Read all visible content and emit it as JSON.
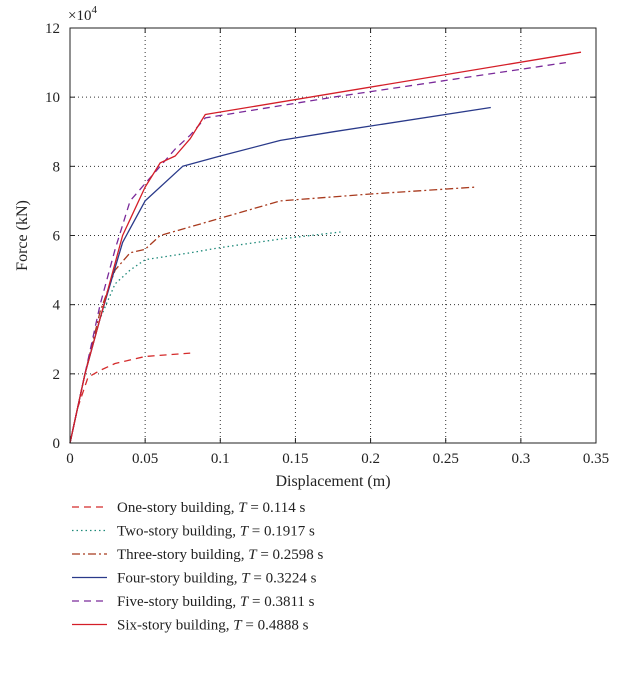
{
  "chart_data": {
    "type": "line",
    "xlabel": "Displacement (m)",
    "ylabel": "Force (kN)",
    "y_multiplier_label": "×10",
    "y_multiplier_exp": "4",
    "xlim": [
      0,
      0.35
    ],
    "ylim": [
      0,
      12
    ],
    "xticks": [
      0,
      0.05,
      0.1,
      0.15,
      0.2,
      0.25,
      0.3,
      0.35
    ],
    "xtick_labels": [
      "0",
      "0.05",
      "0.1",
      "0.15",
      "0.2",
      "0.25",
      "0.3",
      "0.35"
    ],
    "yticks": [
      0,
      2,
      4,
      6,
      8,
      10,
      12
    ],
    "ytick_labels": [
      "0",
      "2",
      "4",
      "6",
      "8",
      "10",
      "12"
    ],
    "grid": "dotted",
    "legend_position": "bottom",
    "series": [
      {
        "name_prefix": "One-story building, ",
        "name_T": "T",
        "name_suffix": " = 0.114 s",
        "color": "#d42a2a",
        "dash": "7,5",
        "points": [
          [
            0,
            0
          ],
          [
            0.005,
            1.0
          ],
          [
            0.012,
            1.9
          ],
          [
            0.02,
            2.1
          ],
          [
            0.03,
            2.3
          ],
          [
            0.05,
            2.5
          ],
          [
            0.065,
            2.55
          ],
          [
            0.08,
            2.6
          ]
        ]
      },
      {
        "name_prefix": "Two-story building, ",
        "name_T": "T",
        "name_suffix": " = 0.1917 s",
        "color": "#1f8a7a",
        "dash": "1.5,3",
        "points": [
          [
            0,
            0
          ],
          [
            0.01,
            2.0
          ],
          [
            0.02,
            3.6
          ],
          [
            0.03,
            4.6
          ],
          [
            0.04,
            5.0
          ],
          [
            0.05,
            5.3
          ],
          [
            0.08,
            5.5
          ],
          [
            0.1,
            5.65
          ],
          [
            0.14,
            5.9
          ],
          [
            0.18,
            6.1
          ]
        ]
      },
      {
        "name_prefix": "Three-story building, ",
        "name_T": "T",
        "name_suffix": " = 0.2598 s",
        "color": "#a83a1e",
        "dash": "8,3,2,3",
        "points": [
          [
            0,
            0
          ],
          [
            0.01,
            2.0
          ],
          [
            0.02,
            3.8
          ],
          [
            0.03,
            5.0
          ],
          [
            0.04,
            5.5
          ],
          [
            0.05,
            5.6
          ],
          [
            0.06,
            6.0
          ],
          [
            0.08,
            6.25
          ],
          [
            0.1,
            6.5
          ],
          [
            0.14,
            7.0
          ],
          [
            0.2,
            7.2
          ],
          [
            0.27,
            7.4
          ]
        ]
      },
      {
        "name_prefix": "Four-story building, ",
        "name_T": "T",
        "name_suffix": " = 0.3224 s",
        "color": "#2a3a8a",
        "dash": "",
        "points": [
          [
            0,
            0
          ],
          [
            0.01,
            2.0
          ],
          [
            0.02,
            3.6
          ],
          [
            0.035,
            5.8
          ],
          [
            0.05,
            7.0
          ],
          [
            0.075,
            8.0
          ],
          [
            0.1,
            8.3
          ],
          [
            0.14,
            8.75
          ],
          [
            0.175,
            9.0
          ],
          [
            0.28,
            9.7
          ]
        ]
      },
      {
        "name_prefix": "Five-story building, ",
        "name_T": "T",
        "name_suffix": " = 0.3811 s",
        "color": "#7a2a9a",
        "dash": "7,5",
        "points": [
          [
            0,
            0
          ],
          [
            0.01,
            2.0
          ],
          [
            0.02,
            4.0
          ],
          [
            0.03,
            5.6
          ],
          [
            0.04,
            7.0
          ],
          [
            0.05,
            7.5
          ],
          [
            0.06,
            8.0
          ],
          [
            0.07,
            8.5
          ],
          [
            0.08,
            8.9
          ],
          [
            0.09,
            9.4
          ],
          [
            0.175,
            10.0
          ],
          [
            0.33,
            11.0
          ]
        ]
      },
      {
        "name_prefix": "Six-story building, ",
        "name_T": "T",
        "name_suffix": " = 0.4888 s",
        "color": "#d41e28",
        "dash": "",
        "points": [
          [
            0,
            0
          ],
          [
            0.01,
            2.0
          ],
          [
            0.02,
            3.6
          ],
          [
            0.035,
            6.0
          ],
          [
            0.05,
            7.4
          ],
          [
            0.06,
            8.1
          ],
          [
            0.07,
            8.3
          ],
          [
            0.08,
            8.8
          ],
          [
            0.09,
            9.5
          ],
          [
            0.34,
            11.3
          ]
        ]
      }
    ]
  }
}
